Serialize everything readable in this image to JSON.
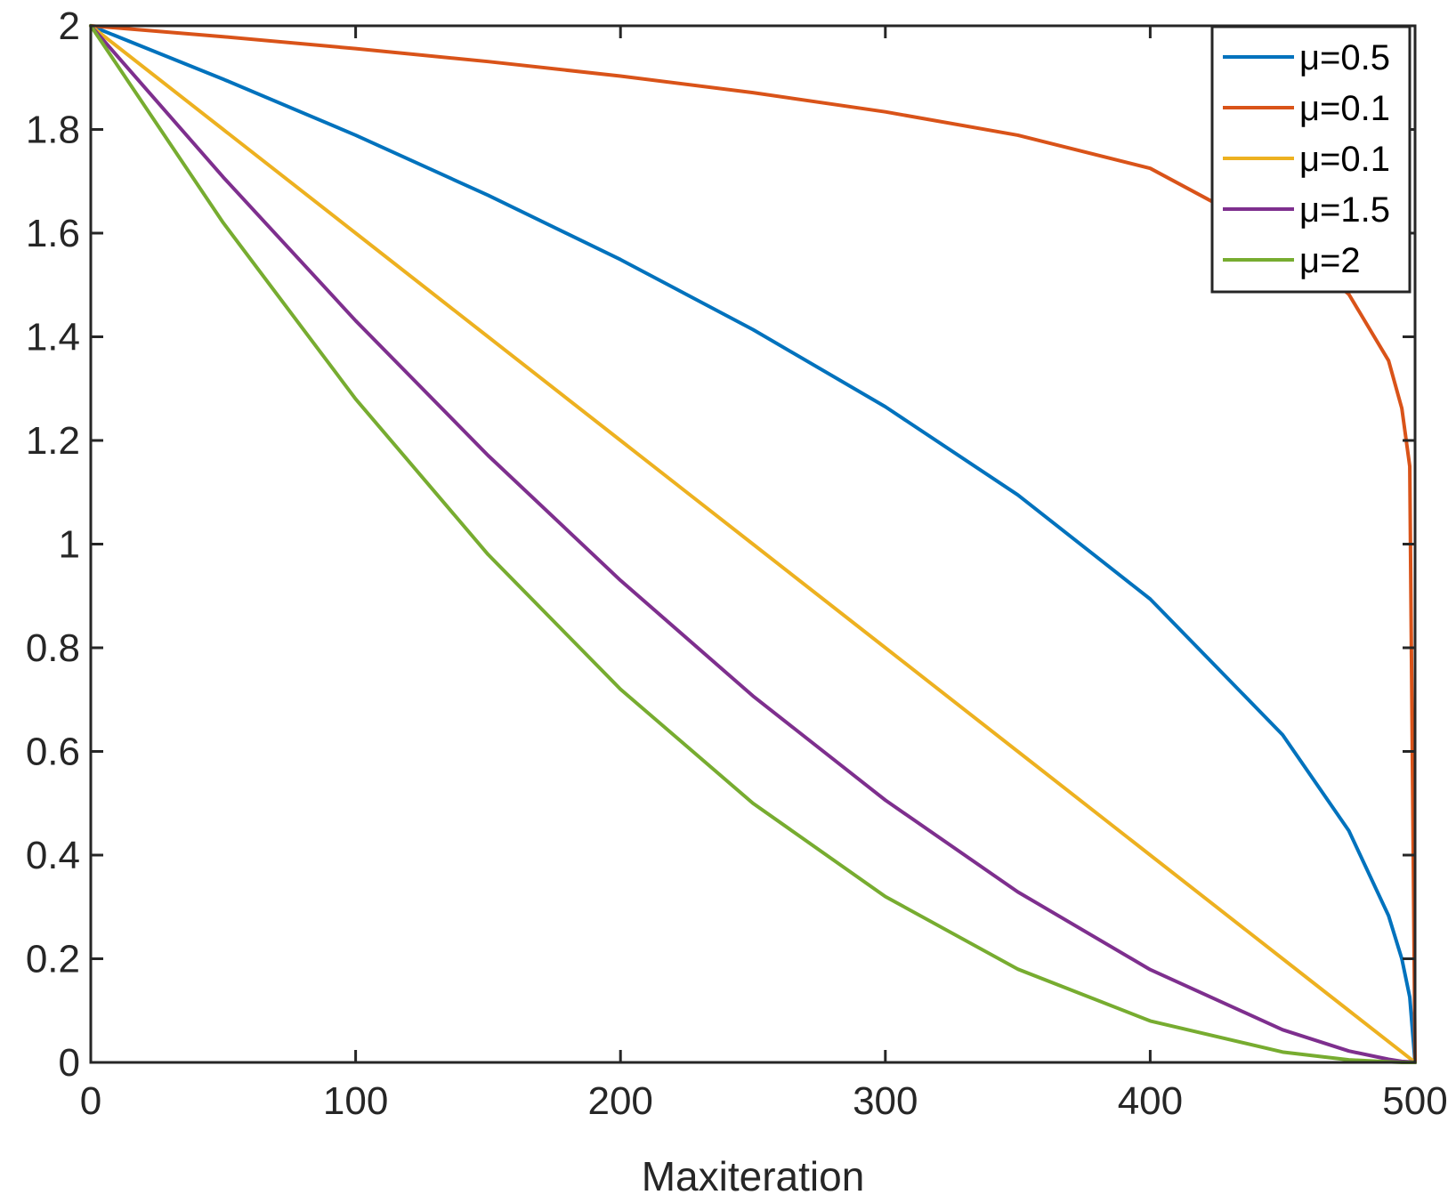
{
  "chart_data": {
    "type": "line",
    "title": "",
    "xlabel": "Maxiteration",
    "ylabel": "",
    "xlim": [
      0,
      500
    ],
    "ylim": [
      0,
      2
    ],
    "xticks": [
      "0",
      "100",
      "200",
      "300",
      "400",
      "500"
    ],
    "yticks": [
      "0",
      "0.2",
      "0.4",
      "0.6",
      "0.8",
      "1",
      "1.2",
      "1.4",
      "1.6",
      "1.8",
      "2"
    ],
    "grid": false,
    "legend_position": "top-right",
    "x": [
      0,
      50,
      100,
      150,
      200,
      250,
      300,
      350,
      400,
      450,
      475,
      490,
      495,
      498,
      500
    ],
    "series": [
      {
        "name": "μ=0.5",
        "color": "#0072BD",
        "values": [
          2.0,
          1.897,
          1.789,
          1.673,
          1.549,
          1.414,
          1.265,
          1.095,
          0.894,
          0.632,
          0.447,
          0.283,
          0.2,
          0.126,
          0.0
        ]
      },
      {
        "name": "μ=0.1",
        "color": "#D95319",
        "values": [
          2.0,
          1.979,
          1.956,
          1.931,
          1.903,
          1.871,
          1.834,
          1.789,
          1.725,
          1.588,
          1.482,
          1.354,
          1.262,
          1.15,
          0.0
        ]
      },
      {
        "name": "μ=0.1",
        "color": "#EDB120",
        "values": [
          2.0,
          1.8,
          1.6,
          1.4,
          1.2,
          1.0,
          0.8,
          0.6,
          0.4,
          0.2,
          0.1,
          0.04,
          0.02,
          0.008,
          0.0
        ]
      },
      {
        "name": "μ=1.5",
        "color": "#7E2F8E",
        "values": [
          2.0,
          1.708,
          1.431,
          1.171,
          0.93,
          0.707,
          0.506,
          0.329,
          0.179,
          0.063,
          0.022,
          0.006,
          0.002,
          0.001,
          0.0
        ]
      },
      {
        "name": "μ=2",
        "color": "#77AC30",
        "values": [
          2.0,
          1.62,
          1.28,
          0.98,
          0.72,
          0.5,
          0.32,
          0.18,
          0.08,
          0.02,
          0.005,
          0.001,
          0.0,
          0.0,
          0.0
        ]
      }
    ]
  }
}
